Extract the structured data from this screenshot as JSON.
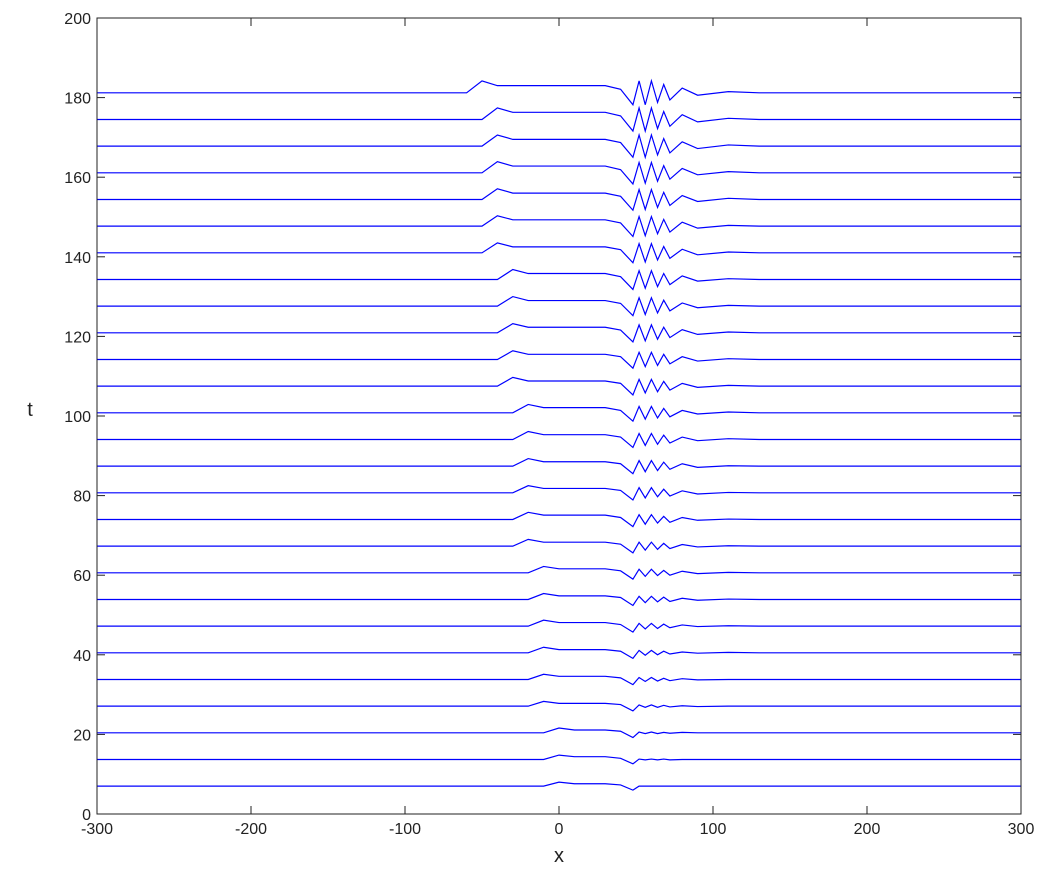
{
  "chart_data": {
    "type": "line",
    "xlabel": "x",
    "ylabel": "t",
    "color": "#0000ff",
    "xlim": [
      -300,
      300
    ],
    "xticks": [
      -300,
      -200,
      -100,
      0,
      100,
      200,
      300
    ],
    "ylim": [
      0,
      200
    ],
    "yticks": [
      0,
      20,
      40,
      60,
      80,
      100,
      120,
      140,
      160,
      180,
      200
    ],
    "x": [
      -300,
      -60,
      -50,
      -40,
      -30,
      -20,
      -10,
      0,
      10,
      20,
      30,
      40,
      48,
      52,
      56,
      60,
      64,
      68,
      72,
      80,
      90,
      110,
      130,
      300
    ],
    "series": [
      {
        "t": 7.0,
        "values": [
          0,
          0,
          0,
          0,
          0,
          0,
          0,
          1,
          0.6,
          0.6,
          0.6,
          0.3,
          -1,
          0,
          0,
          0,
          0,
          0,
          0,
          0,
          0,
          0,
          0,
          0
        ]
      },
      {
        "t": 13.7,
        "values": [
          0,
          0,
          0,
          0,
          0,
          0,
          0,
          1.1,
          0.7,
          0.7,
          0.7,
          0.3,
          -1.1,
          0.1,
          -0.1,
          0.1,
          -0.1,
          0.1,
          -0.1,
          0,
          0,
          0,
          0,
          0
        ]
      },
      {
        "t": 20.4,
        "values": [
          0,
          0,
          0,
          0,
          0,
          0,
          0,
          1.2,
          0.7,
          0.7,
          0.7,
          0.4,
          -1.2,
          0.2,
          -0.2,
          0.2,
          -0.2,
          0.1,
          -0.1,
          0.1,
          0,
          0,
          0,
          0
        ]
      },
      {
        "t": 27.1,
        "values": [
          0,
          0,
          0,
          0,
          0,
          0,
          1.2,
          0.7,
          0.7,
          0.7,
          0.7,
          0.4,
          -1.2,
          0.3,
          -0.3,
          0.3,
          -0.3,
          0.2,
          -0.2,
          0.1,
          -0.1,
          0,
          0,
          0
        ]
      },
      {
        "t": 33.8,
        "values": [
          0,
          0,
          0,
          0,
          0,
          0,
          1.3,
          0.8,
          0.8,
          0.8,
          0.8,
          0.4,
          -1.3,
          0.5,
          -0.5,
          0.5,
          -0.4,
          0.3,
          -0.3,
          0.2,
          -0.1,
          0,
          0,
          0
        ]
      },
      {
        "t": 40.5,
        "values": [
          0,
          0,
          0,
          0,
          0,
          0,
          1.4,
          0.8,
          0.8,
          0.8,
          0.8,
          0.4,
          -1.4,
          0.6,
          -0.6,
          0.6,
          -0.5,
          0.4,
          -0.3,
          0.2,
          -0.1,
          0.1,
          0,
          0
        ]
      },
      {
        "t": 47.2,
        "values": [
          0,
          0,
          0,
          0,
          0,
          0,
          1.5,
          0.9,
          0.9,
          0.9,
          0.9,
          0.4,
          -1.5,
          0.7,
          -0.7,
          0.7,
          -0.6,
          0.5,
          -0.4,
          0.3,
          -0.1,
          0.1,
          0,
          0
        ]
      },
      {
        "t": 53.9,
        "values": [
          0,
          0,
          0,
          0,
          0,
          0,
          1.5,
          0.9,
          0.9,
          0.9,
          0.9,
          0.5,
          -1.5,
          0.8,
          -0.8,
          0.8,
          -0.6,
          0.6,
          -0.5,
          0.3,
          -0.2,
          0.1,
          0,
          0
        ]
      },
      {
        "t": 60.6,
        "values": [
          0,
          0,
          0,
          0,
          0,
          0,
          1.6,
          1,
          1,
          1,
          1,
          0.5,
          -1.6,
          0.9,
          -0.9,
          0.9,
          -0.7,
          0.6,
          -0.6,
          0.4,
          -0.2,
          0.1,
          0,
          0
        ]
      },
      {
        "t": 67.3,
        "values": [
          0,
          0,
          0,
          0,
          0,
          1.7,
          1,
          1,
          1,
          1,
          1,
          0.5,
          -1.7,
          1,
          -1,
          1,
          -0.8,
          0.7,
          -0.6,
          0.4,
          -0.2,
          0.1,
          0,
          0
        ]
      },
      {
        "t": 74.0,
        "values": [
          0,
          0,
          0,
          0,
          0,
          1.8,
          1.1,
          1.1,
          1.1,
          1.1,
          1.1,
          0.5,
          -1.8,
          1.2,
          -1.2,
          1.2,
          -0.9,
          0.8,
          -0.7,
          0.5,
          -0.2,
          0.1,
          0,
          0
        ]
      },
      {
        "t": 80.7,
        "values": [
          0,
          0,
          0,
          0,
          0,
          1.8,
          1.1,
          1.1,
          1.1,
          1.1,
          1.1,
          0.6,
          -1.8,
          1.3,
          -1.3,
          1.3,
          -1,
          0.9,
          -0.8,
          0.5,
          -0.3,
          0.1,
          0,
          0
        ]
      },
      {
        "t": 87.4,
        "values": [
          0,
          0,
          0,
          0,
          0,
          1.9,
          1.1,
          1.1,
          1.1,
          1.1,
          1.1,
          0.6,
          -1.9,
          1.4,
          -1.4,
          1.4,
          -1.1,
          1,
          -0.8,
          0.6,
          -0.3,
          0.1,
          0,
          0
        ]
      },
      {
        "t": 94.1,
        "values": [
          0,
          0,
          0,
          0,
          0,
          2,
          1.2,
          1.2,
          1.2,
          1.2,
          1.2,
          0.6,
          -2,
          1.5,
          -1.5,
          1.5,
          -1.2,
          1.1,
          -0.9,
          0.6,
          -0.3,
          0.2,
          0,
          0
        ]
      },
      {
        "t": 100.8,
        "values": [
          0,
          0,
          0,
          0,
          0,
          2.1,
          1.3,
          1.3,
          1.3,
          1.3,
          1.3,
          0.6,
          -2.1,
          1.6,
          -1.6,
          1.6,
          -1.3,
          1.1,
          -1,
          0.6,
          -0.3,
          0.2,
          0,
          0
        ]
      },
      {
        "t": 107.5,
        "values": [
          0,
          0,
          0,
          0,
          2.2,
          1.3,
          1.3,
          1.3,
          1.3,
          1.3,
          1.3,
          0.7,
          -2.2,
          1.7,
          -1.7,
          1.7,
          -1.4,
          1.2,
          -1,
          0.7,
          -0.3,
          0.2,
          0,
          0
        ]
      },
      {
        "t": 114.2,
        "values": [
          0,
          0,
          0,
          0,
          2.2,
          1.3,
          1.3,
          1.3,
          1.3,
          1.3,
          1.3,
          0.7,
          -2.2,
          1.8,
          -1.8,
          1.8,
          -1.5,
          1.3,
          -1.1,
          0.7,
          -0.4,
          0.2,
          0,
          0
        ]
      },
      {
        "t": 120.9,
        "values": [
          0,
          0,
          0,
          0,
          2.3,
          1.4,
          1.4,
          1.4,
          1.4,
          1.4,
          1.4,
          0.7,
          -2.3,
          2,
          -2,
          2,
          -1.6,
          1.4,
          -1.2,
          0.8,
          -0.4,
          0.2,
          0,
          0
        ]
      },
      {
        "t": 127.6,
        "values": [
          0,
          0,
          0,
          0,
          2.4,
          1.4,
          1.4,
          1.4,
          1.4,
          1.4,
          1.4,
          0.7,
          -2.4,
          2.1,
          -2.1,
          2.1,
          -1.7,
          1.5,
          -1.2,
          0.8,
          -0.4,
          0.2,
          0,
          0
        ]
      },
      {
        "t": 134.3,
        "values": [
          0,
          0,
          0,
          0,
          2.5,
          1.5,
          1.5,
          1.5,
          1.5,
          1.5,
          1.5,
          0.7,
          -2.5,
          2.2,
          -2.2,
          2.2,
          -1.8,
          1.5,
          -1.3,
          0.9,
          -0.4,
          0.2,
          0,
          0
        ]
      },
      {
        "t": 141.0,
        "values": [
          0,
          0,
          0,
          2.5,
          1.5,
          1.5,
          1.5,
          1.5,
          1.5,
          1.5,
          1.5,
          0.8,
          -2.5,
          2.3,
          -2.3,
          2.3,
          -1.8,
          1.6,
          -1.4,
          0.9,
          -0.5,
          0.2,
          0,
          0
        ]
      },
      {
        "t": 147.7,
        "values": [
          0,
          0,
          0,
          2.6,
          1.6,
          1.6,
          1.6,
          1.6,
          1.6,
          1.6,
          1.6,
          0.8,
          -2.6,
          2.4,
          -2.4,
          2.4,
          -1.9,
          1.7,
          -1.5,
          1,
          -0.5,
          0.2,
          0,
          0
        ]
      },
      {
        "t": 154.4,
        "values": [
          0,
          0,
          0,
          2.7,
          1.6,
          1.6,
          1.6,
          1.6,
          1.6,
          1.6,
          1.6,
          0.8,
          -2.7,
          2.5,
          -2.5,
          2.5,
          -2,
          1.8,
          -1.5,
          1,
          -0.5,
          0.3,
          0,
          0
        ]
      },
      {
        "t": 161.1,
        "values": [
          0,
          0,
          0,
          2.8,
          1.7,
          1.7,
          1.7,
          1.7,
          1.7,
          1.7,
          1.7,
          0.8,
          -2.8,
          2.6,
          -2.6,
          2.6,
          -2.1,
          1.8,
          -1.6,
          1.1,
          -0.5,
          0.3,
          0,
          0
        ]
      },
      {
        "t": 167.8,
        "values": [
          0,
          0,
          0,
          2.8,
          1.7,
          1.7,
          1.7,
          1.7,
          1.7,
          1.7,
          1.7,
          0.9,
          -2.8,
          2.8,
          -2.8,
          2.8,
          -2.2,
          1.9,
          -1.7,
          1.1,
          -0.6,
          0.3,
          0,
          0
        ]
      },
      {
        "t": 174.5,
        "values": [
          0,
          0,
          0,
          2.9,
          1.8,
          1.8,
          1.8,
          1.8,
          1.8,
          1.8,
          1.8,
          0.9,
          -2.9,
          2.9,
          -2.9,
          2.9,
          -2.3,
          2,
          -1.7,
          1.2,
          -0.6,
          0.3,
          0,
          0
        ]
      },
      {
        "t": 181.2,
        "values": [
          0,
          0,
          3,
          1.8,
          1.8,
          1.8,
          1.8,
          1.8,
          1.8,
          1.8,
          1.8,
          0.9,
          -3,
          3,
          -3,
          3,
          -2.4,
          2.1,
          -1.8,
          1.2,
          -0.6,
          0.3,
          0,
          0
        ]
      }
    ]
  }
}
